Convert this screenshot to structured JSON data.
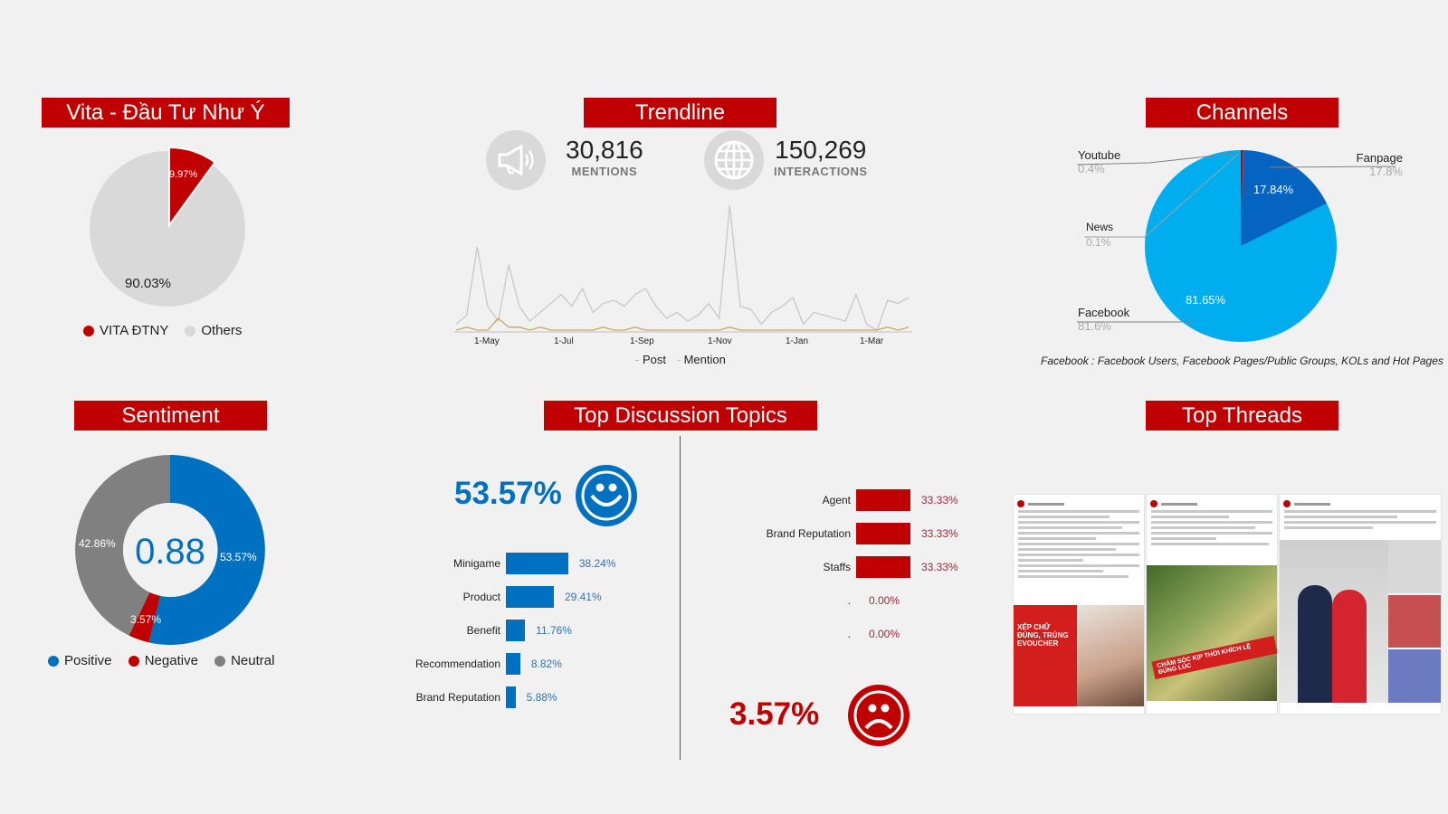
{
  "brand_share": {
    "title": "Vita - Đầu Tư Như Ý",
    "slices": [
      {
        "label": "VITA ĐTNY",
        "value": 9.97,
        "display": "9.97%",
        "color": "#c00000"
      },
      {
        "label": "Others",
        "value": 90.03,
        "display": "90.03%",
        "color": "#d9d9d9"
      }
    ]
  },
  "trendline": {
    "title": "Trendline",
    "mentions": {
      "value": "30,816",
      "label": "MENTIONS",
      "icon": "megaphone-icon"
    },
    "interactions": {
      "value": "150,269",
      "label": "INTERACTIONS",
      "icon": "globe-icon"
    },
    "x_ticks": [
      "1-May",
      "1-Jul",
      "1-Sep",
      "1-Nov",
      "1-Jan",
      "1-Mar"
    ],
    "legend": [
      {
        "label": "Post",
        "color": "#c9a85c"
      },
      {
        "label": "Mention",
        "color": "#bfbfbf"
      }
    ]
  },
  "channels": {
    "title": "Channels",
    "slices": [
      {
        "label": "Facebook",
        "value": 81.65,
        "display": "81.65%",
        "callout": "81.6%",
        "color": "#00aeef"
      },
      {
        "label": "Fanpage",
        "value": 17.84,
        "display": "17.84%",
        "callout": "17.8%",
        "color": "#0563c1"
      },
      {
        "label": "Youtube",
        "value": 0.4,
        "callout": "0.4%",
        "color": "#c00000"
      },
      {
        "label": "News",
        "value": 0.1,
        "callout": "0.1%",
        "color": "#7f7f7f"
      }
    ],
    "footnote": "Facebook : Facebook Users, Facebook Pages/Public Groups, KOLs and Hot Pages"
  },
  "sentiment": {
    "title": "Sentiment",
    "score": "0.88",
    "slices": [
      {
        "label": "Positive",
        "value": 53.57,
        "display": "53.57%",
        "color": "#0070c0"
      },
      {
        "label": "Negative",
        "value": 3.57,
        "display": "3.57%",
        "color": "#c00000"
      },
      {
        "label": "Neutral",
        "value": 42.86,
        "display": "42.86%",
        "color": "#808080"
      }
    ]
  },
  "topics": {
    "title": "Top Discussion Topics",
    "positive": {
      "total": "53.57%",
      "icon": "smiley-icon",
      "items": [
        {
          "label": "Minigame",
          "value": 38.24,
          "display": "38.24%"
        },
        {
          "label": "Product",
          "value": 29.41,
          "display": "29.41%"
        },
        {
          "label": "Benefit",
          "value": 11.76,
          "display": "11.76%"
        },
        {
          "label": "Recommendation",
          "value": 8.82,
          "display": "8.82%"
        },
        {
          "label": "Brand Reputation",
          "value": 5.88,
          "display": "5.88%"
        }
      ]
    },
    "negative": {
      "total": "3.57%",
      "icon": "sad-face-icon",
      "items": [
        {
          "label": "Agent",
          "value": 33.33,
          "display": "33.33%"
        },
        {
          "label": "Brand Reputation",
          "value": 33.33,
          "display": "33.33%"
        },
        {
          "label": "Staffs",
          "value": 33.33,
          "display": "33.33%"
        },
        {
          "label": ".",
          "value": 0,
          "display": "0.00%"
        },
        {
          "label": ".",
          "value": 0,
          "display": "0.00%"
        }
      ]
    }
  },
  "threads": {
    "title": "Top Threads",
    "posts": [
      {
        "banner": "XẾP CHỮ ĐÚNG, TRÚNG EVOUCHER"
      },
      {
        "banner": "CHĂM SÓC KỊP THỜI KHÍCH LỆ ĐÚNG LÚC"
      },
      {
        "banner": ""
      }
    ]
  },
  "chart_data": [
    {
      "type": "pie",
      "title": "Vita - Đầu Tư Như Ý",
      "categories": [
        "VITA ĐTNY",
        "Others"
      ],
      "values": [
        9.97,
        90.03
      ],
      "legend_position": "bottom"
    },
    {
      "type": "line",
      "title": "Trendline",
      "x_ticks": [
        "1-May",
        "1-Jul",
        "1-Sep",
        "1-Nov",
        "1-Jan",
        "1-Mar"
      ],
      "series": [
        {
          "name": "Mention",
          "values": [
            2,
            5,
            28,
            8,
            3,
            22,
            8,
            3,
            6,
            9,
            12,
            8,
            14,
            6,
            9,
            10,
            8,
            12,
            14,
            8,
            4,
            6,
            3,
            5,
            9,
            4,
            42,
            8,
            7,
            2,
            6,
            8,
            11,
            2,
            6,
            5,
            4,
            3,
            12,
            2,
            0,
            10,
            9,
            11
          ]
        },
        {
          "name": "Post",
          "values": [
            0,
            1,
            0,
            0,
            4,
            1,
            1,
            0,
            1,
            0,
            0,
            0,
            0,
            0,
            1,
            0,
            0,
            1,
            0,
            0,
            0,
            0,
            0,
            0,
            0,
            0,
            1,
            0,
            0,
            0,
            0,
            0,
            0,
            0,
            0,
            0,
            0,
            0,
            0,
            0,
            0,
            1,
            0,
            1
          ]
        }
      ],
      "legend_position": "bottom",
      "summary": {
        "mentions": 30816,
        "interactions": 150269
      }
    },
    {
      "type": "pie",
      "title": "Channels",
      "categories": [
        "Facebook",
        "Fanpage",
        "Youtube",
        "News"
      ],
      "values": [
        81.65,
        17.84,
        0.4,
        0.1
      ]
    },
    {
      "type": "pie",
      "title": "Sentiment",
      "categories": [
        "Positive",
        "Negative",
        "Neutral"
      ],
      "values": [
        53.57,
        3.57,
        42.86
      ],
      "center_label": "0.88",
      "legend_position": "bottom"
    },
    {
      "type": "bar",
      "title": "Top Discussion Topics - Positive (53.57%)",
      "categories": [
        "Minigame",
        "Product",
        "Benefit",
        "Recommendation",
        "Brand Reputation"
      ],
      "values": [
        38.24,
        29.41,
        11.76,
        8.82,
        5.88
      ],
      "orientation": "horizontal"
    },
    {
      "type": "bar",
      "title": "Top Discussion Topics - Negative (3.57%)",
      "categories": [
        "Agent",
        "Brand Reputation",
        "Staffs",
        ".",
        "."
      ],
      "values": [
        33.33,
        33.33,
        33.33,
        0.0,
        0.0
      ],
      "orientation": "horizontal"
    }
  ]
}
